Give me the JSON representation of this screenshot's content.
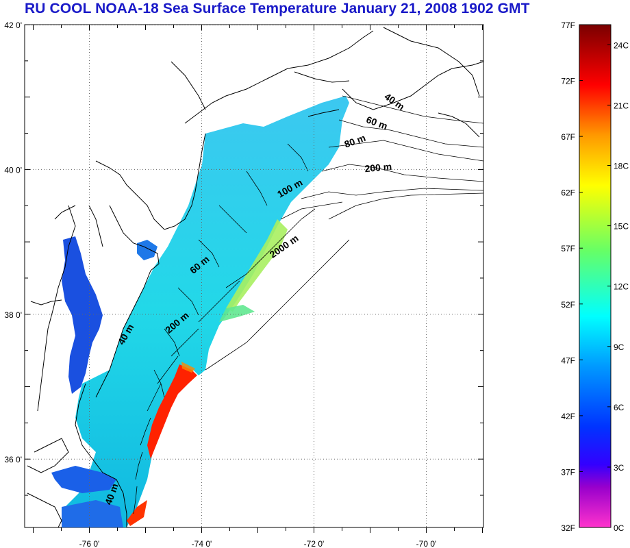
{
  "title": "RU COOL  NOAA-18 Sea Surface Temperature January 21, 2008 1902 GMT",
  "map": {
    "lat_labels": [
      {
        "text": "42 0'",
        "lat": 42
      },
      {
        "text": "40 0'",
        "lat": 40
      },
      {
        "text": "38 0'",
        "lat": 38
      },
      {
        "text": "36 0'",
        "lat": 36
      }
    ],
    "lon_labels": [
      {
        "text": "-76 0'",
        "lon": -76
      },
      {
        "text": "-74 0'",
        "lon": -74
      },
      {
        "text": "-72 0'",
        "lon": -72
      },
      {
        "text": "-70 0'",
        "lon": -70
      }
    ],
    "bathymetry_labels": [
      {
        "text": "40 m",
        "lat": 40.9,
        "lon": -70.6,
        "rotate": 35
      },
      {
        "text": "60 m",
        "lat": 40.6,
        "lon": -70.9,
        "rotate": 20
      },
      {
        "text": "80 m",
        "lat": 40.35,
        "lon": -71.25,
        "rotate": -20
      },
      {
        "text": "200 m",
        "lat": 39.98,
        "lon": -70.85,
        "rotate": -5
      },
      {
        "text": "100 m",
        "lat": 39.7,
        "lon": -72.4,
        "rotate": -30
      },
      {
        "text": "2000 m",
        "lat": 38.9,
        "lon": -72.5,
        "rotate": -35
      },
      {
        "text": "60 m",
        "lat": 38.65,
        "lon": -74.0,
        "rotate": -40
      },
      {
        "text": "200 m",
        "lat": 37.85,
        "lon": -74.4,
        "rotate": -40
      },
      {
        "text": "40 m",
        "lat": 37.7,
        "lon": -75.3,
        "rotate": -60
      },
      {
        "text": "40 m",
        "lat": 35.5,
        "lon": -75.55,
        "rotate": -70
      }
    ]
  },
  "colorbar": {
    "fahrenheit_labels": [
      "77F",
      "72F",
      "67F",
      "62F",
      "57F",
      "52F",
      "47F",
      "42F",
      "37F",
      "32F"
    ],
    "celsius_labels": [
      "24C",
      "21C",
      "18C",
      "15C",
      "12C",
      "9C",
      "6C",
      "3C",
      "0C"
    ],
    "colors": [
      "#ff33cc",
      "#6600cc",
      "#0000ff",
      "#0099ff",
      "#00ffff",
      "#66ff66",
      "#ffff00",
      "#ff9900",
      "#ff0000",
      "#7a0000"
    ]
  }
}
